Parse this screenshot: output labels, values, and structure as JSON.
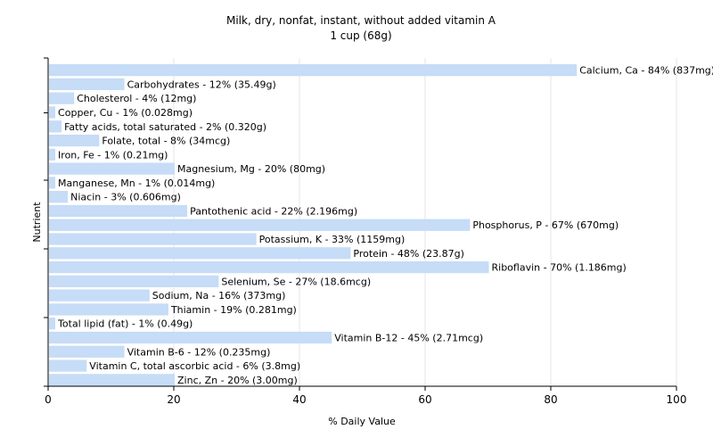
{
  "chart_data": {
    "type": "bar",
    "orientation": "horizontal",
    "title": "Milk, dry, nonfat, instant, without added vitamin A",
    "subtitle": "1 cup (68g)",
    "xlabel": "% Daily Value",
    "ylabel": "Nutrient",
    "xlim": [
      0,
      100
    ],
    "xticks": [
      0,
      20,
      40,
      60,
      80,
      100
    ],
    "grid": true,
    "bar_color": "#c6dcf7",
    "categories": [
      "Calcium, Ca",
      "Carbohydrates",
      "Cholesterol",
      "Copper, Cu",
      "Fatty acids, total saturated",
      "Folate, total",
      "Iron, Fe",
      "Magnesium, Mg",
      "Manganese, Mn",
      "Niacin",
      "Pantothenic acid",
      "Phosphorus, P",
      "Potassium, K",
      "Protein",
      "Riboflavin",
      "Selenium, Se",
      "Sodium, Na",
      "Thiamin",
      "Total lipid (fat)",
      "Vitamin B-12",
      "Vitamin B-6",
      "Vitamin C, total ascorbic acid",
      "Zinc, Zn"
    ],
    "values": [
      84,
      12,
      4,
      1,
      2,
      8,
      1,
      20,
      1,
      3,
      22,
      67,
      33,
      48,
      70,
      27,
      16,
      19,
      1,
      45,
      12,
      6,
      20
    ],
    "labels": [
      "Calcium, Ca - 84% (837mg)",
      "Carbohydrates - 12% (35.49g)",
      "Cholesterol - 4% (12mg)",
      "Copper, Cu - 1% (0.028mg)",
      "Fatty acids, total saturated - 2% (0.320g)",
      "Folate, total - 8% (34mcg)",
      "Iron, Fe - 1% (0.21mg)",
      "Magnesium, Mg - 20% (80mg)",
      "Manganese, Mn - 1% (0.014mg)",
      "Niacin - 3% (0.606mg)",
      "Pantothenic acid - 22% (2.196mg)",
      "Phosphorus, P - 67% (670mg)",
      "Potassium, K - 33% (1159mg)",
      "Protein - 48% (23.87g)",
      "Riboflavin - 70% (1.186mg)",
      "Selenium, Se - 27% (18.6mcg)",
      "Sodium, Na - 16% (373mg)",
      "Thiamin - 19% (0.281mg)",
      "Total lipid (fat) - 1% (0.49g)",
      "Vitamin B-12 - 45% (2.71mcg)",
      "Vitamin B-6 - 12% (0.235mg)",
      "Vitamin C, total ascorbic acid - 6% (3.8mg)",
      "Zinc, Zn - 20% (3.00mg)"
    ]
  }
}
